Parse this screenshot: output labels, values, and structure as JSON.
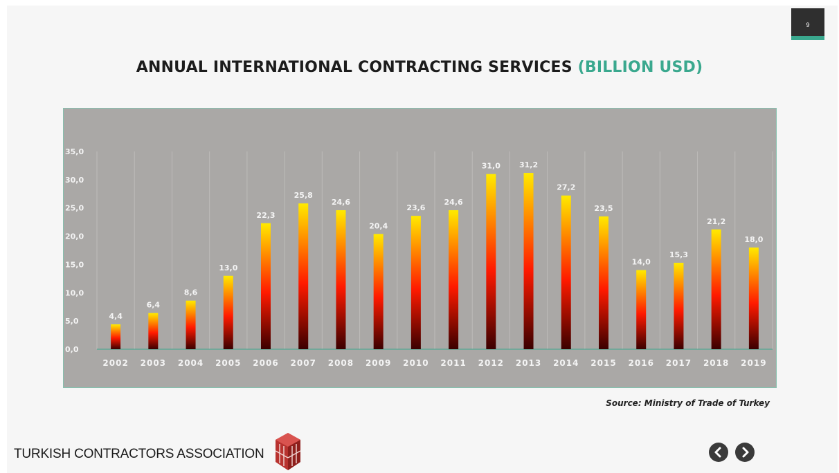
{
  "page_number": "9",
  "title": {
    "main": "ANNUAL INTERNATIONAL CONTRACTING SERVICES",
    "accent": "(BILLION USD)"
  },
  "source": "Source: Ministry of Trade of Turkey",
  "footer": {
    "organization": "TURKISH CONTRACTORS ASSOCIATION"
  },
  "navigation": {
    "prev_icon": "chevron-left-icon",
    "next_icon": "chevron-right-icon"
  },
  "colors": {
    "accent": "#3aa88e",
    "plot_background": "#aaa8a6",
    "bar_top": "#ffea00",
    "bar_mid": "#ff1a00",
    "bar_bottom": "#3a0000",
    "label": "#f4f4f4"
  },
  "chart_data": {
    "type": "bar",
    "title": "ANNUAL INTERNATIONAL CONTRACTING SERVICES (BILLION USD)",
    "categories": [
      "2002",
      "2003",
      "2004",
      "2005",
      "2006",
      "2007",
      "2008",
      "2009",
      "2010",
      "2011",
      "2012",
      "2013",
      "2014",
      "2015",
      "2016",
      "2017",
      "2018",
      "2019"
    ],
    "values": [
      4.4,
      6.4,
      8.6,
      13.0,
      22.3,
      25.8,
      24.6,
      20.4,
      23.6,
      24.6,
      31.0,
      31.2,
      27.2,
      23.5,
      14.0,
      15.3,
      21.2,
      18.0
    ],
    "value_labels": [
      "4,4",
      "6,4",
      "8,6",
      "13,0",
      "22,3",
      "25,8",
      "24,6",
      "20,4",
      "23,6",
      "24,6",
      "31,0",
      "31,2",
      "27,2",
      "23,5",
      "14,0",
      "15,3",
      "21,2",
      "18,0"
    ],
    "y_ticks": [
      0,
      5,
      10,
      15,
      20,
      25,
      30,
      35
    ],
    "y_tick_labels": [
      "0,0",
      "5,0",
      "10,0",
      "15,0",
      "20,0",
      "25,0",
      "30,0",
      "35,0"
    ],
    "ylim": [
      0,
      35
    ],
    "xlabel": "",
    "ylabel": "",
    "grid": "vertical",
    "legend": "none"
  }
}
